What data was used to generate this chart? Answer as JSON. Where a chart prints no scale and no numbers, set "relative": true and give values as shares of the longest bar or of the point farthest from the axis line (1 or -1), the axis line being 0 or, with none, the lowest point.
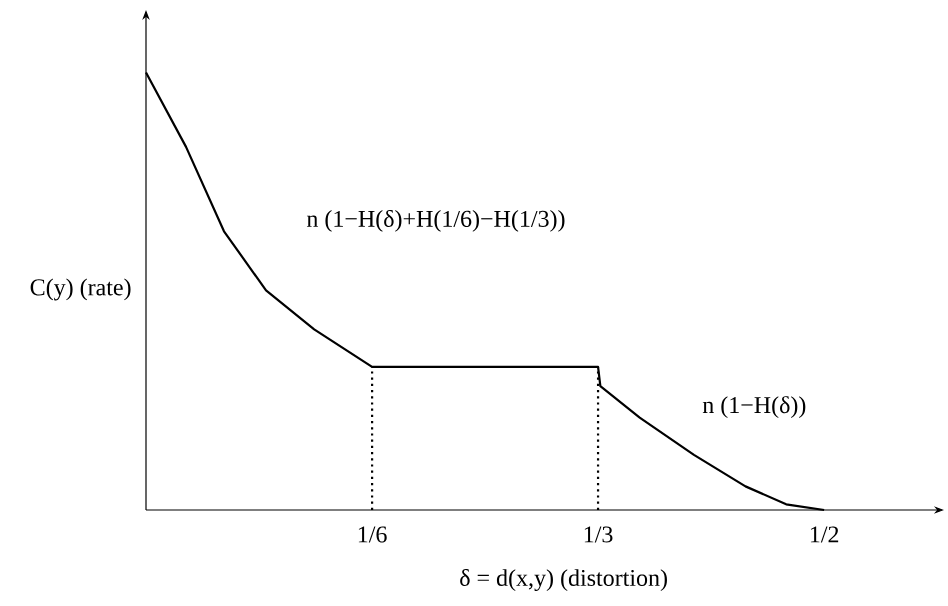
{
  "chart_data": {
    "type": "line",
    "relative": true,
    "xlabel": "δ = d(x,y)   (distortion)",
    "ylabel": "C(y) (rate)",
    "xlim": [
      0,
      0.581
    ],
    "xticks": [
      {
        "value": 0.1667,
        "label": "1/6"
      },
      {
        "value": 0.3333,
        "label": "1/3"
      },
      {
        "value": 0.5,
        "label": "1/2"
      }
    ],
    "series": [
      {
        "color": "#000000",
        "line_style": "solid",
        "x": [
          0,
          0.0295,
          0.0575,
          0.0885,
          0.124,
          0.1667,
          0.3333,
          0.335,
          0.364,
          0.404,
          0.442,
          0.472,
          0.5
        ],
        "values": [
          1,
          0.83,
          0.637,
          0.502,
          0.413,
          0.327,
          0.327,
          0.283,
          0.211,
          0.126,
          0.054,
          0.013,
          0
        ]
      },
      {
        "color": "#000000",
        "line_style": "dotted",
        "x": [
          0.1667,
          0.1667
        ],
        "values": [
          0,
          0.327
        ]
      },
      {
        "color": "#000000",
        "line_style": "dotted",
        "x": [
          0.3333,
          0.3333
        ],
        "values": [
          0,
          0.327
        ]
      }
    ],
    "annotations": [
      "n (1−H(δ)+H(1/6)−H(1/3))",
      "n (1−H(δ))"
    ]
  }
}
